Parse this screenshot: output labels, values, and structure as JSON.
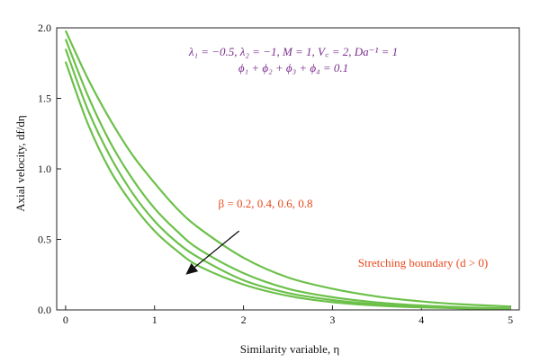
{
  "chart_data": {
    "type": "line",
    "xlabel": "Similarity variable, η",
    "ylabel": "Axial velocity, df/dη",
    "xlim": [
      -0.1,
      5.1
    ],
    "ylim": [
      0,
      2.0
    ],
    "xticks": [
      "0",
      "1",
      "2",
      "3",
      "4",
      "5"
    ],
    "yticks": [
      "0.0",
      "0.5",
      "1.0",
      "1.5",
      "2.0"
    ],
    "grid": false,
    "line_color": "#6cc04a",
    "parameters": {
      "line1": "λ₁ = −0.5, λ₂ = −1, M = 1, V꜀ = 2, Da⁻¹ = 1",
      "line2": "ϕ₁ + ϕ₂ + ϕ₃ + ϕ₄ = 0.1"
    },
    "annotation_beta": "β = 0.2, 0.4, 0.6, 0.8",
    "annotation_boundary": "Stretching boundary (d > 0)",
    "series": [
      {
        "x": [
          0,
          0.25,
          0.5,
          0.75,
          1,
          1.25,
          1.5,
          2,
          2.5,
          3,
          3.5,
          4,
          4.5,
          5
        ],
        "y": [
          1.76,
          1.32,
          0.99,
          0.75,
          0.56,
          0.42,
          0.31,
          0.18,
          0.1,
          0.055,
          0.031,
          0.018,
          0.01,
          0.006
        ]
      },
      {
        "x": [
          0,
          0.25,
          0.5,
          0.75,
          1,
          1.25,
          1.5,
          2,
          2.5,
          3,
          3.5,
          4,
          4.5,
          5
        ],
        "y": [
          1.85,
          1.42,
          1.09,
          0.83,
          0.63,
          0.48,
          0.37,
          0.21,
          0.12,
          0.07,
          0.04,
          0.023,
          0.013,
          0.008
        ]
      },
      {
        "x": [
          0,
          0.25,
          0.5,
          0.75,
          1,
          1.25,
          1.5,
          2,
          2.5,
          3,
          3.5,
          4,
          4.5,
          5
        ],
        "y": [
          1.92,
          1.52,
          1.19,
          0.93,
          0.72,
          0.56,
          0.43,
          0.26,
          0.15,
          0.09,
          0.053,
          0.031,
          0.018,
          0.011
        ]
      },
      {
        "x": [
          0,
          0.25,
          0.5,
          0.75,
          1,
          1.25,
          1.5,
          2,
          2.5,
          3,
          3.5,
          4,
          4.5,
          5
        ],
        "y": [
          1.98,
          1.64,
          1.35,
          1.1,
          0.9,
          0.72,
          0.58,
          0.37,
          0.23,
          0.15,
          0.095,
          0.06,
          0.038,
          0.024
        ]
      }
    ],
    "arrow": {
      "from": [
        1.95,
        0.56
      ],
      "to": [
        1.35,
        0.25
      ]
    }
  }
}
